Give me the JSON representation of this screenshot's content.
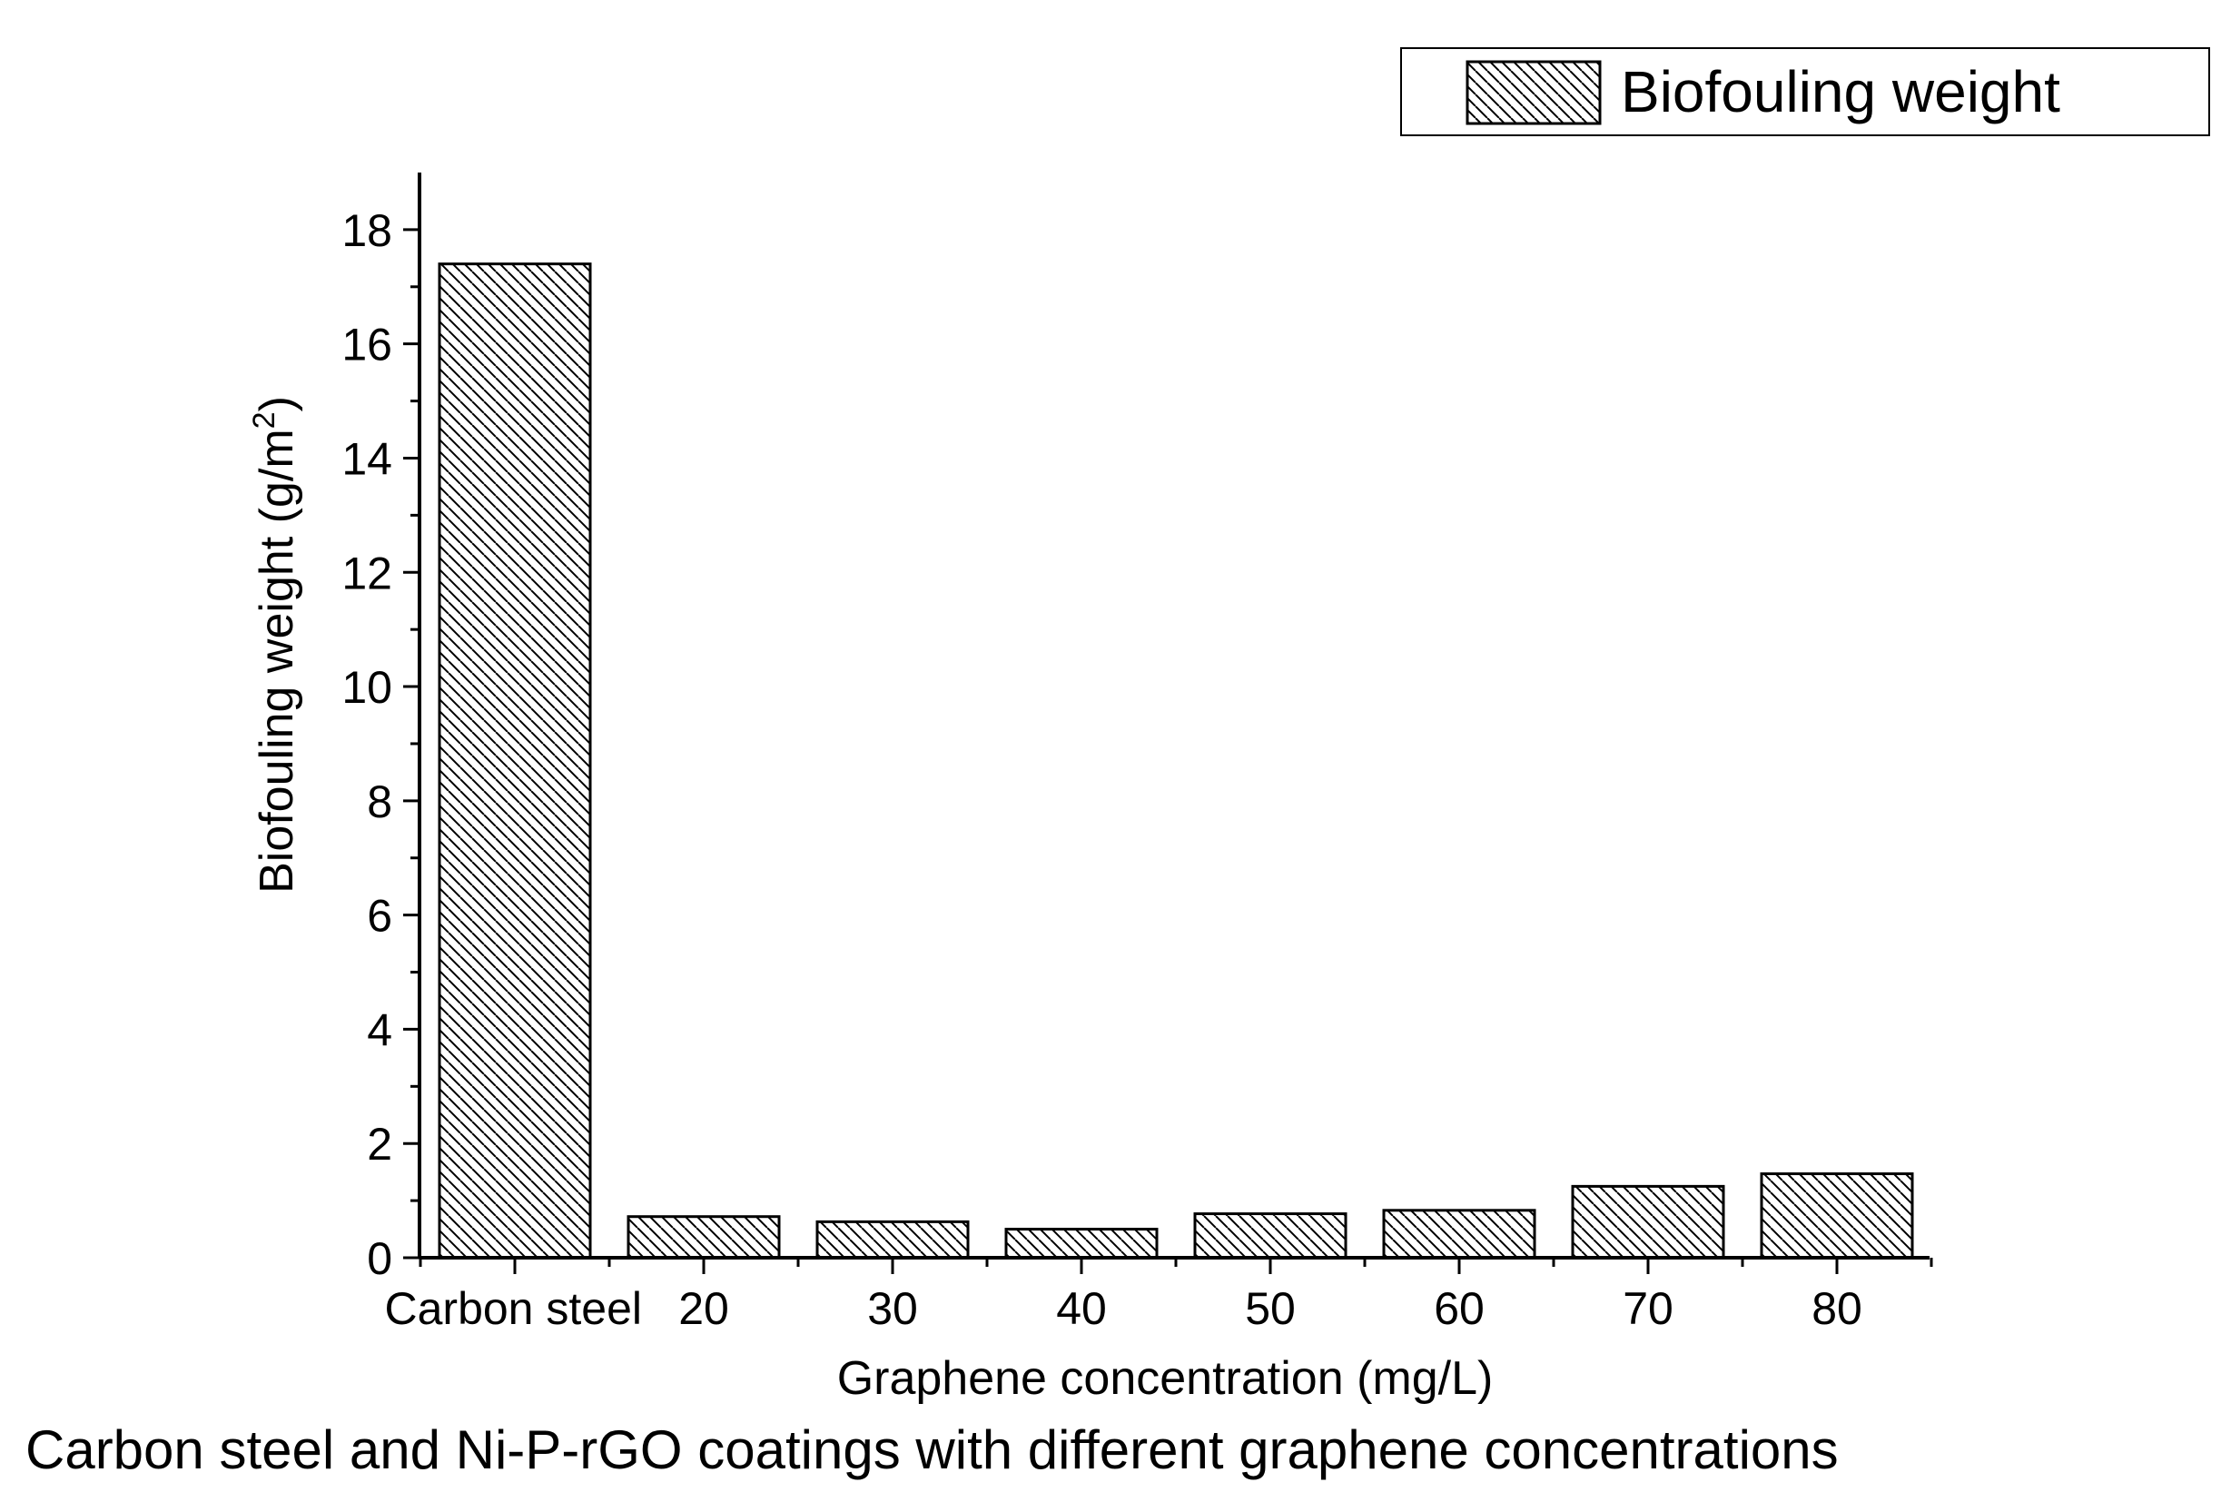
{
  "chart_data": {
    "type": "bar",
    "title": "",
    "caption": "Carbon steel and Ni-P-rGO coatings with different graphene concentrations",
    "xlabel": "Graphene concentration (mg/L)",
    "ylabel_main": "Biofouling weight (g/m",
    "ylabel_sup": "2",
    "ylabel_close": ")",
    "categories": [
      "Carbon steel",
      "20",
      "30",
      "40",
      "50",
      "60",
      "70",
      "80"
    ],
    "series": [
      {
        "name": "Biofouling weight",
        "values": [
          17.4,
          0.72,
          0.63,
          0.5,
          0.77,
          0.83,
          1.25,
          1.47
        ]
      }
    ],
    "ylim": [
      0,
      19
    ],
    "yticks": [
      0,
      2,
      4,
      6,
      8,
      10,
      12,
      14,
      16,
      18
    ],
    "grid": false,
    "legend_position": "top-right",
    "bar_fill": "hatched",
    "colors": {
      "bar_stroke": "#000000",
      "hatch": "#000000",
      "background": "#ffffff"
    }
  }
}
